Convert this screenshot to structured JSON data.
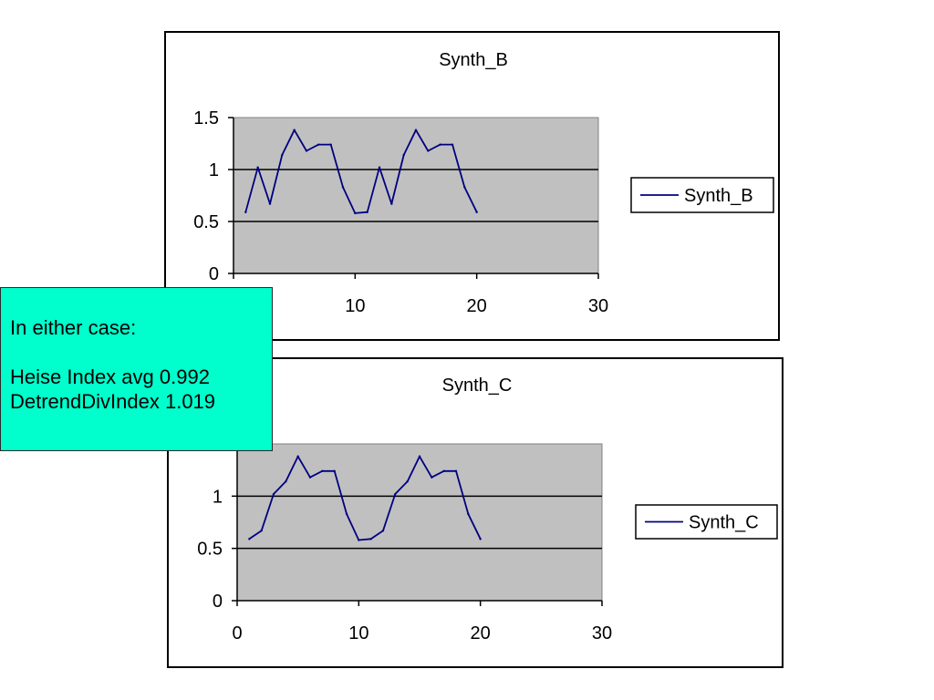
{
  "colors": {
    "plot_area": "#c0c0c0",
    "series_line": "#000080",
    "note_background": "#00ffcc"
  },
  "chart_data": [
    {
      "type": "line",
      "title": "Synth_B",
      "xlabel": "",
      "ylabel": "",
      "xlim": [
        0,
        30
      ],
      "ylim": [
        0,
        1.5
      ],
      "xticks": [
        0,
        10,
        20,
        30
      ],
      "yticks": [
        0,
        0.5,
        1,
        1.5
      ],
      "xtick_labels": [
        "",
        "10",
        "20",
        "30"
      ],
      "ytick_labels": [
        "0",
        "0.5",
        "1",
        "1.5"
      ],
      "gridlines": "horizontal",
      "legend_position": "right",
      "series": [
        {
          "name": "Synth_B",
          "x": [
            1,
            2,
            3,
            4,
            5,
            6,
            7,
            8,
            9,
            10,
            11,
            12,
            13,
            14,
            15,
            16,
            17,
            18,
            19,
            20
          ],
          "values": [
            0.59,
            1.02,
            0.67,
            1.14,
            1.38,
            1.18,
            1.24,
            1.24,
            0.83,
            0.58,
            0.59,
            1.02,
            0.67,
            1.14,
            1.38,
            1.18,
            1.24,
            1.24,
            0.83,
            0.59
          ]
        }
      ]
    },
    {
      "type": "line",
      "title": "Synth_C",
      "xlabel": "",
      "ylabel": "",
      "xlim": [
        0,
        30
      ],
      "ylim": [
        0,
        1.5
      ],
      "xticks": [
        0,
        10,
        20,
        30
      ],
      "yticks": [
        0,
        0.5,
        1,
        1.5
      ],
      "xtick_labels": [
        "0",
        "10",
        "20",
        "30"
      ],
      "ytick_labels": [
        "0",
        "0.5",
        "1",
        ""
      ],
      "gridlines": "horizontal",
      "legend_position": "right",
      "series": [
        {
          "name": "Synth_C",
          "x": [
            1,
            2,
            3,
            4,
            5,
            6,
            7,
            8,
            9,
            10,
            11,
            12,
            13,
            14,
            15,
            16,
            17,
            18,
            19,
            20
          ],
          "values": [
            0.59,
            0.67,
            1.02,
            1.14,
            1.38,
            1.18,
            1.24,
            1.24,
            0.83,
            0.58,
            0.59,
            0.67,
            1.02,
            1.14,
            1.38,
            1.18,
            1.24,
            1.24,
            0.83,
            0.59
          ]
        }
      ]
    }
  ],
  "note": {
    "heading": "In either case:",
    "lines": [
      "Heise Index avg 0.992",
      "DetrendDivIndex 1.019"
    ]
  }
}
